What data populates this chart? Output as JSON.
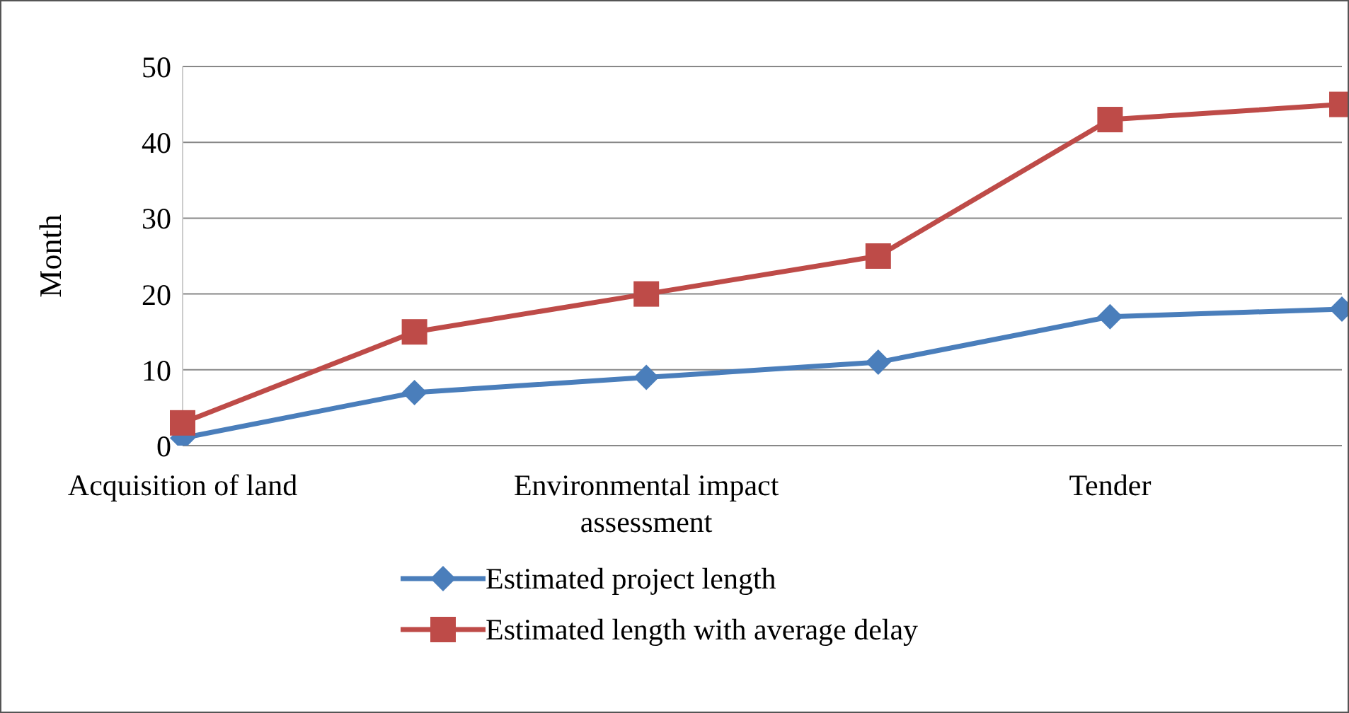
{
  "chart_data": {
    "type": "line",
    "ylabel": "Month",
    "categories": [
      "Acquisition of land",
      null,
      "Environmental impact assessment",
      null,
      "Tender",
      null
    ],
    "series": [
      {
        "name": "Estimated project length",
        "color": "#4a7ebb",
        "marker": "diamond",
        "values": [
          1,
          7,
          9,
          11,
          17,
          18
        ]
      },
      {
        "name": "Estimated length with average delay",
        "color": "#be4b48",
        "marker": "square",
        "values": [
          3,
          15,
          20,
          25,
          43,
          45
        ]
      }
    ],
    "ylim": [
      0,
      50
    ],
    "yticks": [
      0,
      10,
      20,
      30,
      40,
      50
    ],
    "grid": "y",
    "legend": "bottom"
  }
}
